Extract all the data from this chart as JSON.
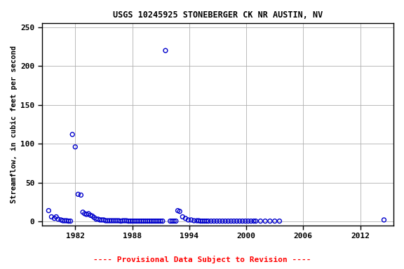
{
  "title": "USGS 10245925 STONEBERGER CK NR AUSTIN, NV",
  "ylabel": "Streamflow, in cubic feet per second",
  "footer": "---- Provisional Data Subject to Revision ----",
  "footer_color": "#ff0000",
  "marker_color": "#0000cc",
  "background_color": "#ffffff",
  "grid_color": "#b0b0b0",
  "xlim": [
    1978.5,
    2015.5
  ],
  "ylim": [
    -5,
    255
  ],
  "yticks": [
    0,
    50,
    100,
    150,
    200,
    250
  ],
  "xticks": [
    1982,
    1988,
    1994,
    2000,
    2006,
    2012
  ],
  "data": [
    [
      1979.2,
      14
    ],
    [
      1979.5,
      6
    ],
    [
      1979.8,
      4
    ],
    [
      1980.0,
      6
    ],
    [
      1980.2,
      3
    ],
    [
      1980.5,
      2
    ],
    [
      1980.7,
      1
    ],
    [
      1980.9,
      1
    ],
    [
      1981.1,
      1
    ],
    [
      1981.3,
      0.5
    ],
    [
      1981.5,
      0.5
    ],
    [
      1981.7,
      112
    ],
    [
      1982.0,
      96
    ],
    [
      1982.3,
      35
    ],
    [
      1982.6,
      34
    ],
    [
      1982.8,
      12
    ],
    [
      1983.0,
      10
    ],
    [
      1983.2,
      9
    ],
    [
      1983.4,
      10
    ],
    [
      1983.6,
      8
    ],
    [
      1983.8,
      7
    ],
    [
      1984.0,
      5
    ],
    [
      1984.2,
      3
    ],
    [
      1984.4,
      3
    ],
    [
      1984.6,
      2
    ],
    [
      1984.8,
      2
    ],
    [
      1985.0,
      2
    ],
    [
      1985.2,
      1
    ],
    [
      1985.4,
      1
    ],
    [
      1985.6,
      1
    ],
    [
      1985.8,
      1
    ],
    [
      1986.0,
      1
    ],
    [
      1986.2,
      1
    ],
    [
      1986.4,
      1
    ],
    [
      1986.6,
      1
    ],
    [
      1986.8,
      0.5
    ],
    [
      1987.0,
      1
    ],
    [
      1987.2,
      1
    ],
    [
      1987.4,
      1
    ],
    [
      1987.6,
      0.5
    ],
    [
      1987.8,
      0.5
    ],
    [
      1988.0,
      0.5
    ],
    [
      1988.2,
      0.5
    ],
    [
      1988.4,
      0.5
    ],
    [
      1988.6,
      0.5
    ],
    [
      1988.8,
      0.5
    ],
    [
      1989.0,
      0.5
    ],
    [
      1989.2,
      0.5
    ],
    [
      1989.4,
      0.5
    ],
    [
      1989.6,
      0.5
    ],
    [
      1989.8,
      0.5
    ],
    [
      1990.0,
      0.5
    ],
    [
      1990.2,
      0.5
    ],
    [
      1990.4,
      0.5
    ],
    [
      1990.6,
      0.5
    ],
    [
      1990.8,
      0.5
    ],
    [
      1991.0,
      0.5
    ],
    [
      1991.2,
      0.5
    ],
    [
      1991.5,
      220
    ],
    [
      1992.0,
      0.5
    ],
    [
      1992.2,
      0.5
    ],
    [
      1992.4,
      0.5
    ],
    [
      1992.6,
      0.5
    ],
    [
      1992.8,
      14
    ],
    [
      1993.0,
      13
    ],
    [
      1993.3,
      6
    ],
    [
      1993.6,
      4
    ],
    [
      1993.9,
      2
    ],
    [
      1994.2,
      2
    ],
    [
      1994.5,
      1
    ],
    [
      1994.8,
      1
    ],
    [
      1995.0,
      1
    ],
    [
      1995.2,
      0.5
    ],
    [
      1995.4,
      0.5
    ],
    [
      1995.6,
      0.5
    ],
    [
      1995.8,
      0.5
    ],
    [
      1996.0,
      0.5
    ],
    [
      1996.3,
      0.5
    ],
    [
      1996.6,
      0.5
    ],
    [
      1996.9,
      0.5
    ],
    [
      1997.2,
      0.5
    ],
    [
      1997.5,
      0.5
    ],
    [
      1997.8,
      0.5
    ],
    [
      1998.1,
      0.5
    ],
    [
      1998.4,
      0.5
    ],
    [
      1998.7,
      0.5
    ],
    [
      1999.0,
      0.5
    ],
    [
      1999.3,
      0.5
    ],
    [
      1999.6,
      0.5
    ],
    [
      1999.9,
      0.5
    ],
    [
      2000.2,
      0.5
    ],
    [
      2000.5,
      0.5
    ],
    [
      2000.8,
      0.5
    ],
    [
      2001.0,
      0.5
    ],
    [
      2001.5,
      0.5
    ],
    [
      2002.0,
      0.5
    ],
    [
      2002.5,
      0.5
    ],
    [
      2003.0,
      0.5
    ],
    [
      2003.5,
      0.5
    ],
    [
      2014.5,
      2
    ]
  ]
}
